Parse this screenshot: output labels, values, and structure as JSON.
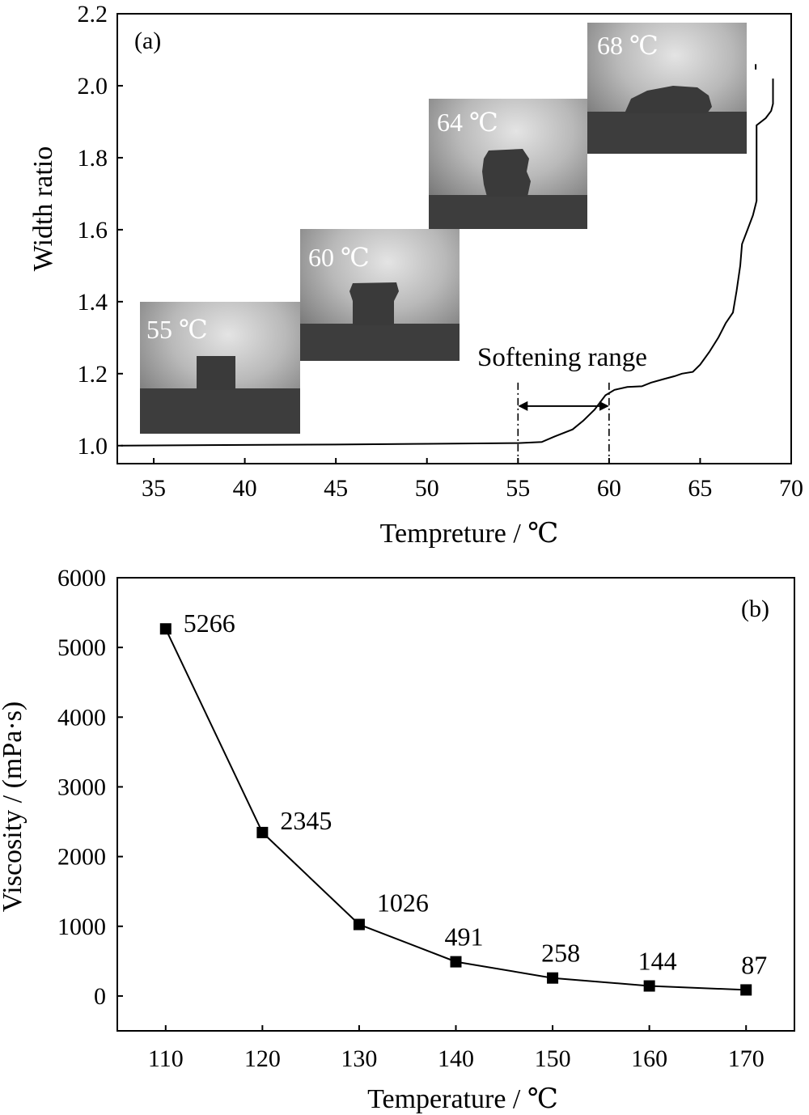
{
  "chart_data": [
    {
      "panel": "(a)",
      "type": "line",
      "xlabel": "Tempreture / ℃",
      "ylabel": "Width ratio",
      "xlim": [
        33,
        70
      ],
      "ylim": [
        0.95,
        2.2
      ],
      "xticks": [
        35,
        40,
        45,
        50,
        55,
        60,
        65,
        70
      ],
      "yticks": [
        1.0,
        1.2,
        1.4,
        1.6,
        1.8,
        2.0,
        2.2
      ],
      "series": [
        {
          "x": [
            33.2,
            40,
            45,
            50,
            55,
            56.3,
            57,
            58,
            58.6,
            59.2,
            59.8,
            60.3,
            61,
            61.8,
            62.3,
            63,
            63.6,
            64,
            64.6,
            65,
            65.5,
            66,
            66.4,
            66.8,
            67,
            67.2,
            67.3,
            67.6,
            67.9,
            68.1,
            68.1,
            68.6,
            68.9,
            69,
            69
          ],
          "y": [
            1.0,
            1.002,
            1.003,
            1.005,
            1.007,
            1.01,
            1.025,
            1.045,
            1.07,
            1.1,
            1.14,
            1.155,
            1.163,
            1.165,
            1.175,
            1.185,
            1.193,
            1.2,
            1.205,
            1.225,
            1.26,
            1.3,
            1.34,
            1.37,
            1.43,
            1.5,
            1.56,
            1.6,
            1.64,
            1.68,
            1.89,
            1.91,
            1.93,
            1.95,
            2.02
          ]
        }
      ],
      "annotations": {
        "softening_range": {
          "text": "Softening range",
          "from": 55,
          "to": 60
        },
        "photo_labels": [
          "55 ℃",
          "60 ℃",
          "64 ℃",
          "68 ℃"
        ]
      },
      "grid": false
    },
    {
      "panel": "(b)",
      "type": "line",
      "xlabel": "Temperature / ℃",
      "ylabel": "Viscosity / (mPa·s)",
      "xlim": [
        105,
        175
      ],
      "ylim": [
        -500,
        6000
      ],
      "xticks": [
        110,
        120,
        130,
        140,
        150,
        160,
        170
      ],
      "yticks": [
        0,
        1000,
        2000,
        3000,
        4000,
        5000,
        6000
      ],
      "x": [
        110,
        120,
        130,
        140,
        150,
        160,
        170
      ],
      "series": [
        {
          "values": [
            5266,
            2345,
            1026,
            491,
            258,
            144,
            87
          ]
        }
      ],
      "data_labels": [
        "5266",
        "2345",
        "1026",
        "491",
        "258",
        "144",
        "87"
      ],
      "marker": "square",
      "grid": false
    }
  ],
  "colors": {
    "line": "#000000",
    "background": "#ffffff",
    "photo_text": "#ffffff"
  }
}
